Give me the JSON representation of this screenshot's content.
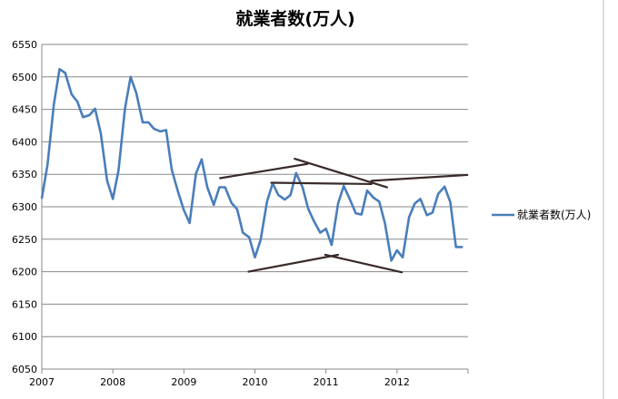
{
  "chart_data": {
    "type": "line",
    "title": "就業者数(万人)",
    "xlabel": "",
    "ylabel": "",
    "x_ticks": [
      "2007",
      "2008",
      "2009",
      "2010",
      "2011",
      "2012"
    ],
    "ylim": [
      6050,
      6550
    ],
    "y_ticks": [
      6050,
      6100,
      6150,
      6200,
      6250,
      6300,
      6350,
      6400,
      6450,
      6500,
      6550
    ],
    "grid": "horizontal",
    "legend_position": "right",
    "series": [
      {
        "name": "就業者数(万人)",
        "color": "#4a7ebb",
        "x": [
          2007.0,
          2007.08,
          2007.17,
          2007.25,
          2007.33,
          2007.42,
          2007.5,
          2007.58,
          2007.67,
          2007.75,
          2007.83,
          2007.92,
          2008.0,
          2008.08,
          2008.17,
          2008.25,
          2008.33,
          2008.42,
          2008.5,
          2008.58,
          2008.67,
          2008.75,
          2008.83,
          2008.92,
          2009.0,
          2009.08,
          2009.17,
          2009.25,
          2009.33,
          2009.42,
          2009.5,
          2009.58,
          2009.67,
          2009.75,
          2009.83,
          2009.92,
          2010.0,
          2010.08,
          2010.17,
          2010.25,
          2010.33,
          2010.42,
          2010.5,
          2010.58,
          2010.67,
          2010.75,
          2010.83,
          2010.92,
          2011.0,
          2011.08,
          2011.17,
          2011.25,
          2011.33,
          2011.42,
          2011.5,
          2011.58,
          2011.67,
          2011.75,
          2011.83,
          2011.92,
          2012.0,
          2012.08,
          2012.17,
          2012.25,
          2012.33,
          2012.42,
          2012.5,
          2012.58,
          2012.67,
          2012.75,
          2012.83,
          2012.92
        ],
        "values": [
          6313,
          6365,
          6458,
          6512,
          6506,
          6473,
          6462,
          6438,
          6441,
          6451,
          6413,
          6340,
          6312,
          6356,
          6451,
          6500,
          6475,
          6430,
          6430,
          6420,
          6416,
          6418,
          6357,
          6322,
          6295,
          6275,
          6351,
          6373,
          6330,
          6303,
          6330,
          6330,
          6306,
          6296,
          6260,
          6253,
          6222,
          6249,
          6308,
          6336,
          6318,
          6311,
          6318,
          6352,
          6330,
          6297,
          6278,
          6260,
          6266,
          6241,
          6305,
          6332,
          6313,
          6290,
          6288,
          6325,
          6314,
          6308,
          6275,
          6217,
          6233,
          6222,
          6284,
          6305,
          6312,
          6287,
          6291,
          6320,
          6331,
          6307,
          6238,
          6238
        ]
      }
    ],
    "annotations": [
      {
        "type": "trendline",
        "from": [
          2009.51,
          6344
        ],
        "to": [
          2010.74,
          6366
        ]
      },
      {
        "type": "trendline",
        "from": [
          2010.56,
          6374
        ],
        "to": [
          2011.86,
          6330
        ]
      },
      {
        "type": "trendline",
        "from": [
          2010.23,
          6337
        ],
        "to": [
          2011.64,
          6335
        ]
      },
      {
        "type": "trendline",
        "from": [
          2011.64,
          6340
        ],
        "to": [
          2012.99,
          6349
        ]
      },
      {
        "type": "trendline",
        "from": [
          2009.91,
          6200
        ],
        "to": [
          2011.17,
          6226
        ]
      },
      {
        "type": "trendline",
        "from": [
          2010.99,
          6226
        ],
        "to": [
          2012.07,
          6199
        ]
      }
    ]
  }
}
